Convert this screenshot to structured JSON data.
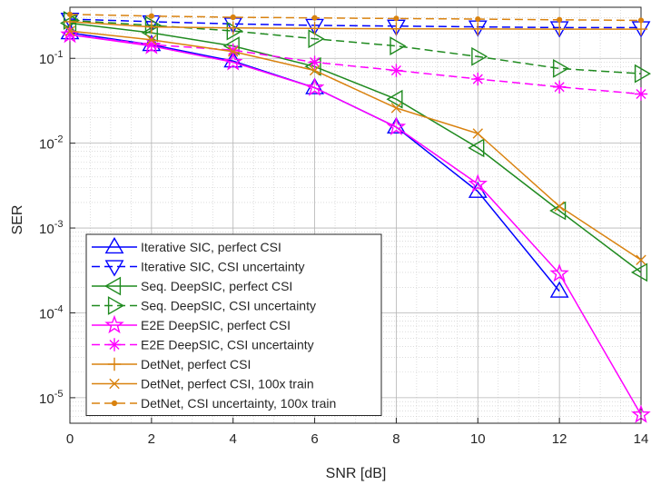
{
  "chart_data": {
    "type": "line",
    "xlabel": "SNR [dB]",
    "ylabel": "SER",
    "xlim": [
      0,
      14
    ],
    "ylim": [
      5e-06,
      0.4
    ],
    "yscale": "log",
    "grid": "on (major and minor)",
    "legend_position": "bottom-left",
    "x_ticks": [
      0,
      2,
      4,
      6,
      8,
      10,
      12,
      14
    ],
    "y_ticks": [
      {
        "value": 0.1,
        "base": "10",
        "exp": "-1"
      },
      {
        "value": 0.01,
        "base": "10",
        "exp": "-2"
      },
      {
        "value": 0.001,
        "base": "10",
        "exp": "-3"
      },
      {
        "value": 0.0001,
        "base": "10",
        "exp": "-4"
      },
      {
        "value": 1e-05,
        "base": "10",
        "exp": "-5"
      }
    ],
    "series": [
      {
        "name": "Iterative SIC, perfect CSI",
        "color": "#0000FF",
        "dash": "solid",
        "marker": "triangle-up",
        "x": [
          0,
          2,
          4,
          6,
          8,
          10,
          12
        ],
        "y": [
          0.2,
          0.145,
          0.093,
          0.045,
          0.0155,
          0.0027,
          0.00018
        ]
      },
      {
        "name": "Iterative SIC, CSI uncertainty",
        "color": "#0000FF",
        "dash": "dashed",
        "marker": "triangle-down",
        "x": [
          0,
          2,
          4,
          6,
          8,
          10,
          12,
          14
        ],
        "y": [
          0.29,
          0.27,
          0.255,
          0.245,
          0.24,
          0.235,
          0.23,
          0.23
        ]
      },
      {
        "name": "Seq. DeepSIC, perfect CSI",
        "color": "#1F8A1F",
        "dash": "solid",
        "marker": "triangle-left",
        "x": [
          0,
          2,
          4,
          6,
          8,
          10,
          12,
          14
        ],
        "y": [
          0.26,
          0.2,
          0.14,
          0.08,
          0.033,
          0.0088,
          0.0016,
          0.0003
        ]
      },
      {
        "name": "Seq. DeepSIC, CSI uncertainty",
        "color": "#1F8A1F",
        "dash": "dashed",
        "marker": "triangle-right",
        "x": [
          0,
          2,
          4,
          6,
          8,
          10,
          12,
          14
        ],
        "y": [
          0.28,
          0.245,
          0.21,
          0.17,
          0.14,
          0.105,
          0.076,
          0.066
        ]
      },
      {
        "name": "E2E DeepSIC, perfect CSI",
        "color": "#FF00FF",
        "dash": "solid",
        "marker": "pentagram",
        "x": [
          0,
          2,
          4,
          6,
          8,
          10,
          12,
          14
        ],
        "y": [
          0.19,
          0.14,
          0.09,
          0.045,
          0.0155,
          0.0033,
          0.00029,
          6.3e-06
        ]
      },
      {
        "name": "E2E DeepSIC, CSI uncertainty",
        "color": "#FF00FF",
        "dash": "dashed",
        "marker": "asterisk",
        "x": [
          0,
          2,
          4,
          6,
          8,
          10,
          12,
          14
        ],
        "y": [
          0.19,
          0.145,
          0.125,
          0.09,
          0.072,
          0.057,
          0.046,
          0.038
        ]
      },
      {
        "name": "DetNet, perfect CSI",
        "color": "#D9820F",
        "dash": "solid",
        "marker": "plus",
        "x": [
          0,
          2,
          4,
          6,
          8,
          10,
          12,
          14
        ],
        "y": [
          0.27,
          0.235,
          0.228,
          0.225,
          0.223,
          0.222,
          0.221,
          0.221
        ]
      },
      {
        "name": "DetNet, perfect CSI, 100x train",
        "color": "#D9820F",
        "dash": "solid",
        "marker": "x",
        "x": [
          0,
          2,
          4,
          6,
          8,
          10,
          12,
          14
        ],
        "y": [
          0.21,
          0.165,
          0.12,
          0.072,
          0.026,
          0.013,
          0.0018,
          0.00042
        ]
      },
      {
        "name": "DetNet, CSI uncertainty, 100x train",
        "color": "#D9820F",
        "dash": "dashed",
        "marker": "dot",
        "x": [
          0,
          2,
          4,
          6,
          8,
          10,
          12,
          14
        ],
        "y": [
          0.33,
          0.315,
          0.305,
          0.3,
          0.295,
          0.29,
          0.285,
          0.28
        ]
      }
    ]
  }
}
